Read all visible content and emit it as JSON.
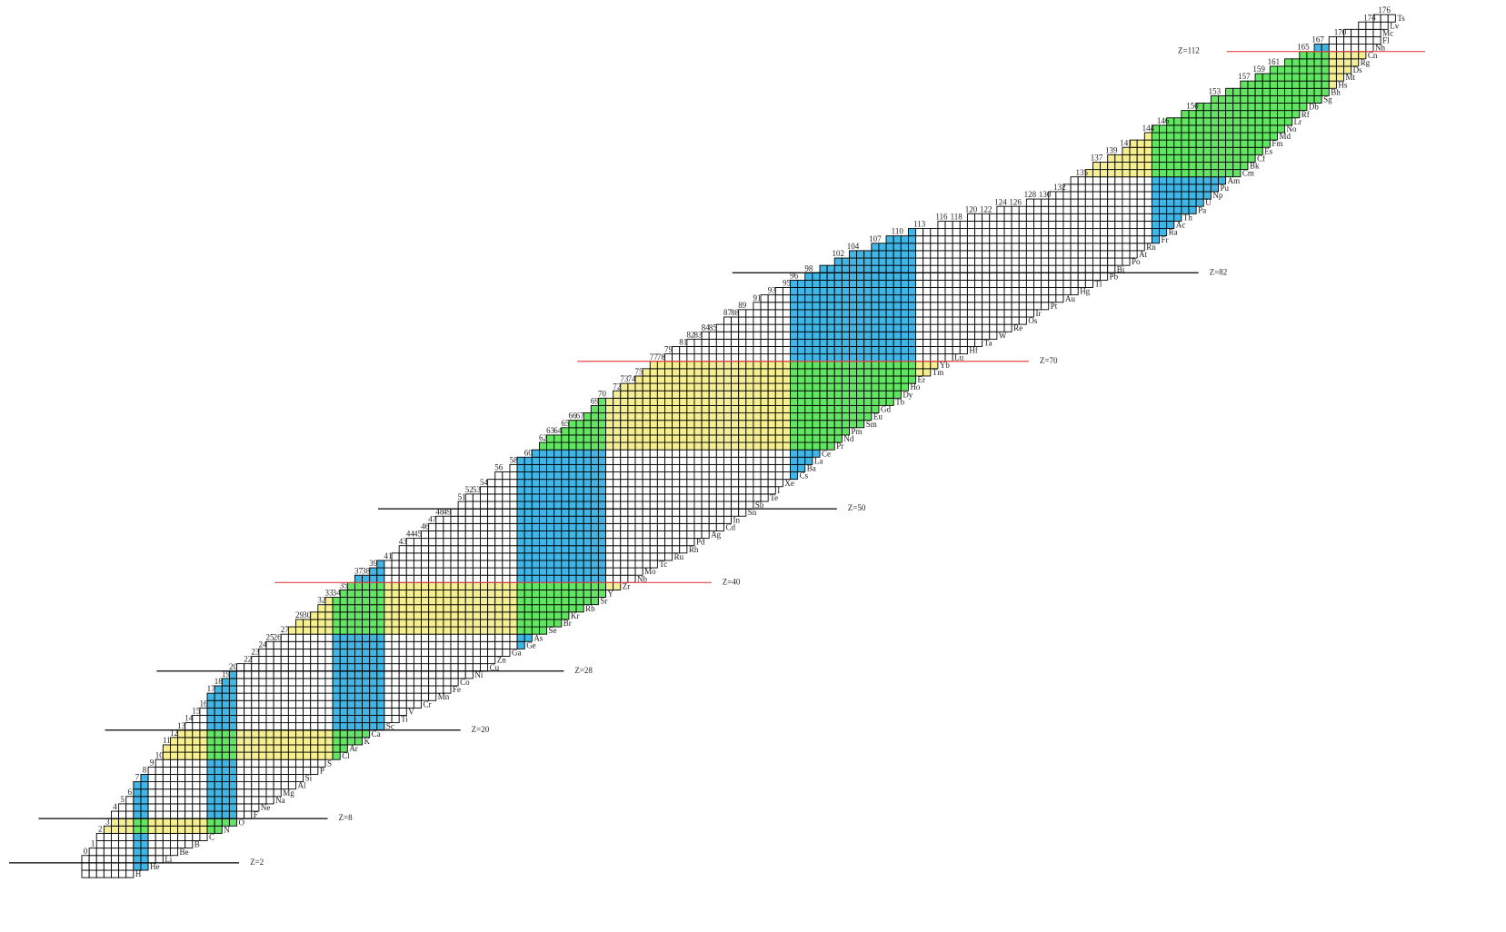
{
  "chart_data": {
    "type": "nuclide",
    "elements": [
      "H",
      "He",
      "Li",
      "Be",
      "B",
      "C",
      "N",
      "O",
      "F",
      "Ne",
      "Na",
      "Mg",
      "Al",
      "Si",
      "P",
      "S",
      "Cl",
      "Ar",
      "K",
      "Ca",
      "Sc",
      "Ti",
      "V",
      "Cr",
      "Mn",
      "Fe",
      "Co",
      "Ni",
      "Cu",
      "Zn",
      "Ga",
      "Ge",
      "As",
      "Se",
      "Br",
      "Kr",
      "Rb",
      "Sr",
      "Y",
      "Zr",
      "Nb",
      "Mo",
      "Tc",
      "Ru",
      "Rh",
      "Pd",
      "Ag",
      "Cd",
      "In",
      "Sn",
      "Sb",
      "Te",
      "I",
      "Xe",
      "Cs",
      "Ba",
      "La",
      "Ce",
      "Pr",
      "Nd",
      "Pm",
      "Sm",
      "Eu",
      "Gd",
      "Tb",
      "Dy",
      "Ho",
      "Er",
      "Tm",
      "Yb",
      "Lu",
      "Hf",
      "Ta",
      "W",
      "Re",
      "Os",
      "Ir",
      "Pt",
      "Au",
      "Hg",
      "Tl",
      "Pb",
      "Bi",
      "Po",
      "At",
      "Rn",
      "Fr",
      "Ra",
      "Ac",
      "Th",
      "Pa",
      "U",
      "Np",
      "Pu",
      "Am",
      "Cm",
      "Bk",
      "Cf",
      "Es",
      "Fm",
      "Md",
      "No",
      "Lr",
      "Rf",
      "Db",
      "Sg",
      "Bh",
      "Hs",
      "Mt",
      "Ds",
      "Rg",
      "Cn",
      "Nh",
      "Fl",
      "Mc",
      "Lv",
      "Ts"
    ],
    "n_labels": [
      0,
      1,
      2,
      3,
      4,
      5,
      6,
      7,
      8,
      9,
      10,
      11,
      12,
      13,
      14,
      15,
      16,
      17,
      18,
      19,
      20,
      22,
      23,
      24,
      25,
      26,
      27,
      29,
      30,
      32,
      33,
      34,
      35,
      37,
      38,
      39,
      41,
      43,
      44,
      45,
      46,
      47,
      48,
      49,
      51,
      52,
      53,
      54,
      56,
      58,
      60,
      62,
      63,
      64,
      65,
      66,
      67,
      69,
      70,
      72,
      73,
      74,
      75,
      77,
      78,
      79,
      81,
      82,
      83,
      84,
      85,
      87,
      88,
      89,
      91,
      93,
      95,
      96,
      98,
      102,
      104,
      107,
      110,
      113,
      116,
      118,
      120,
      122,
      124,
      126,
      128,
      130,
      132,
      135,
      137,
      139,
      141,
      144,
      146,
      150,
      153,
      157,
      159,
      161,
      165,
      167,
      170,
      174,
      176
    ],
    "z_lines": [
      {
        "label": "Z=2",
        "z": 2,
        "color": "#000000"
      },
      {
        "label": "Z=8",
        "z": 8,
        "color": "#000000"
      },
      {
        "label": "Z=20",
        "z": 20,
        "color": "#000000"
      },
      {
        "label": "Z=28",
        "z": 28,
        "color": "#000000"
      },
      {
        "label": "Z=40",
        "z": 40,
        "color": "#e8474a"
      },
      {
        "label": "Z=50",
        "z": 50,
        "color": "#000000"
      },
      {
        "label": "Z=70",
        "z": 70,
        "color": "#e8474a"
      },
      {
        "label": "Z=82",
        "z": 82,
        "color": "#000000"
      },
      {
        "label": "Z=112",
        "z": 112,
        "color": "#e8474a"
      }
    ],
    "colors": {
      "column_band": "#40b6e6",
      "row_band": "#f6ef92",
      "overlap": "#62e562",
      "cell": "#ffffff"
    }
  }
}
